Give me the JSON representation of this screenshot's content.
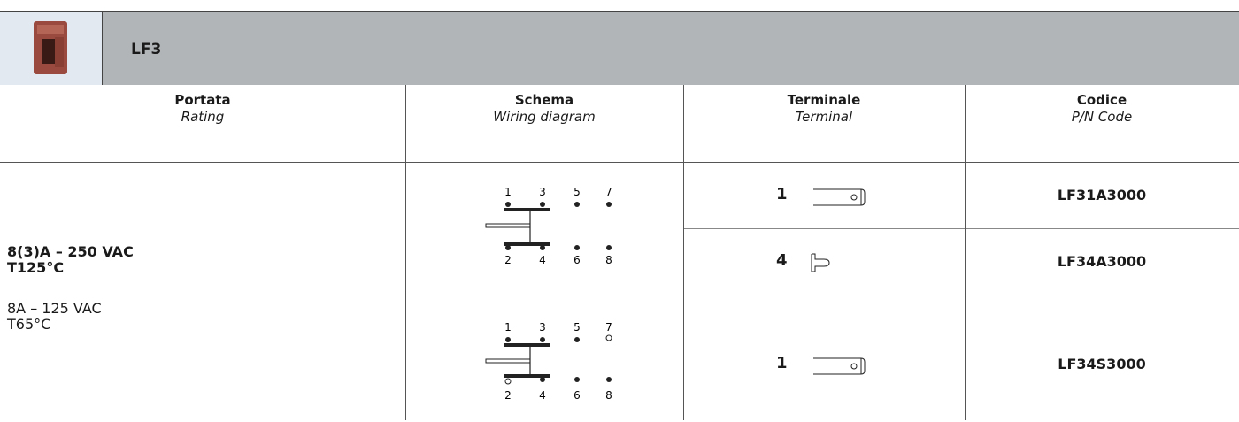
{
  "header": {
    "title": "LF3"
  },
  "table": {
    "columns": [
      {
        "label": "Portata",
        "sublabel": "Rating"
      },
      {
        "label": "Schema",
        "sublabel": "Wiring diagram"
      },
      {
        "label": "Terminale",
        "sublabel": "Terminal"
      },
      {
        "label": "Codice",
        "sublabel": "P/N Code"
      }
    ],
    "rating": {
      "primary": [
        "8(3)A – 250 VAC",
        "T125°C"
      ],
      "secondary": [
        "8A – 125 VAC",
        "T65°C"
      ]
    },
    "diagrams": [
      {
        "top": [
          "1",
          "3",
          "5",
          "7"
        ],
        "bottom": [
          "2",
          "4",
          "6",
          "8"
        ]
      },
      {
        "top": [
          "1",
          "3",
          "5",
          "7"
        ],
        "bottom": [
          "2",
          "4",
          "6",
          "8"
        ]
      }
    ],
    "rows": [
      {
        "terminal": "1",
        "code": "LF31A3000"
      },
      {
        "terminal": "4",
        "code": "LF34A3000"
      },
      {
        "terminal": "1",
        "code": "LF34S3000"
      }
    ]
  }
}
